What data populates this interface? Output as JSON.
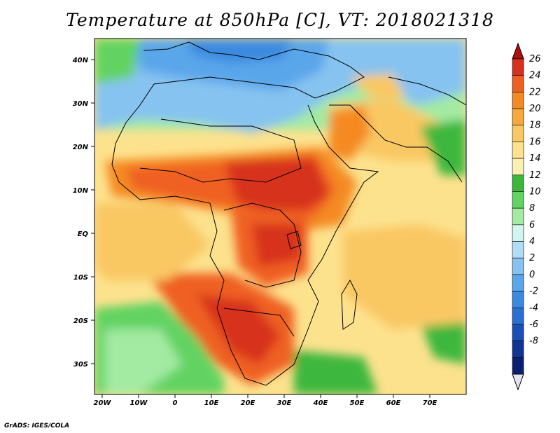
{
  "title": "Temperature at 850hPa [C], VT: 2018021318",
  "credit": "GrADS: IGES/COLA",
  "map": {
    "lon_range": [
      -22,
      80
    ],
    "lat_range": [
      -37,
      46
    ],
    "lat_ticks": [
      "40N",
      "30N",
      "20N",
      "10N",
      "EQ",
      "10S",
      "20S",
      "30S"
    ],
    "lon_ticks": [
      "20W",
      "10W",
      "0",
      "10E",
      "20E",
      "30E",
      "40E",
      "50E",
      "60E",
      "70E"
    ]
  },
  "colorbar": {
    "labels": [
      "26",
      "24",
      "22",
      "20",
      "18",
      "16",
      "14",
      "12",
      "10",
      "8",
      "6",
      "4",
      "2",
      "0",
      "-2",
      "-4",
      "-6",
      "-8"
    ],
    "colors": [
      "#d7301f",
      "#ef6020",
      "#f58a24",
      "#f8a83a",
      "#f9c863",
      "#fde28e",
      "#fbf0b4",
      "#3cb73c",
      "#62d362",
      "#a3eaa3",
      "#d3f5ef",
      "#b0dcf6",
      "#86c3f0",
      "#5aa6ea",
      "#3a8ae0",
      "#2a6fd1",
      "#1a4fb8",
      "#103394",
      "#0b1f70"
    ]
  }
}
